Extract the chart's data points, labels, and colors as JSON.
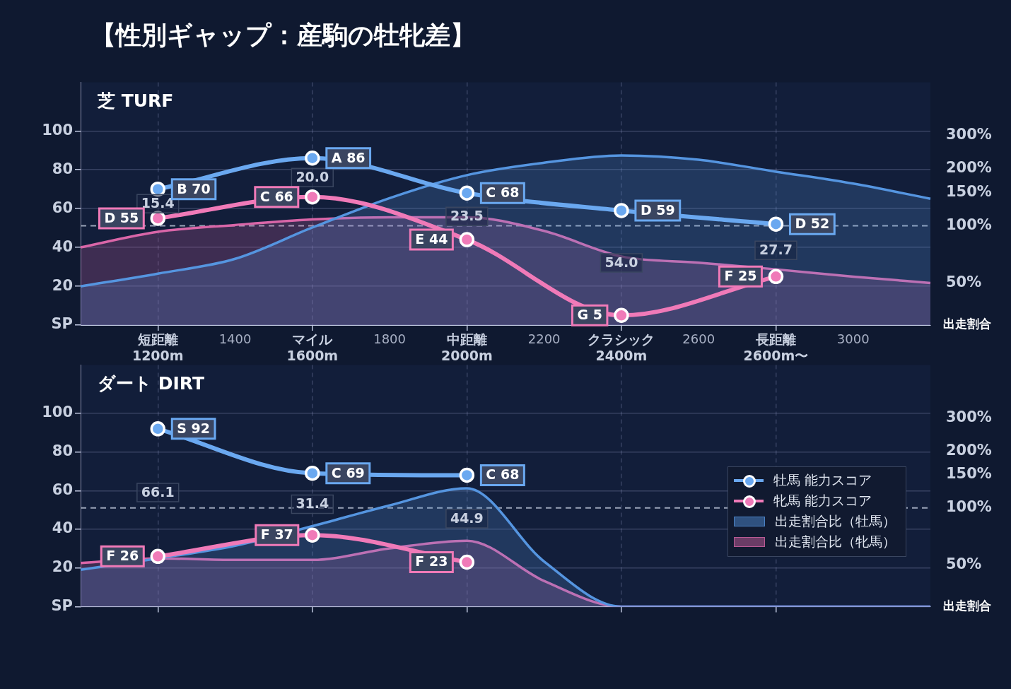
{
  "chart_data": [
    {
      "type": "line",
      "title": "【性別ギャップ：産駒の牡牝差】",
      "subtitle": "芝 TURF",
      "y2label": "出走割合",
      "categories": [
        null,
        "短距離\n1200m",
        "1400",
        "マイル\n1600m",
        "1800",
        "中距離\n2000m",
        "2200",
        "クラシック\n2400m",
        "2600",
        "長距離\n2600m〜",
        "3000",
        null
      ],
      "ylim": [
        0,
        125
      ],
      "yticks": [
        {
          "value": 0,
          "label": "SP"
        },
        20,
        40,
        60,
        80,
        100
      ],
      "y2lim": [
        30,
        570
      ],
      "y2ticks": [
        {
          "value": 50,
          "label": "50%"
        },
        {
          "value": 100,
          "label": "100%"
        },
        {
          "value": 150,
          "label": "150%"
        },
        {
          "value": 200,
          "label": "200%"
        },
        {
          "value": 300,
          "label": "300%"
        }
      ],
      "log": "y2",
      "grid": true,
      "legend": false,
      "marker": "circle",
      "ref_lines": [
        {
          "axis": "y2",
          "value": 100,
          "line_style": "dashed",
          "color": "#9aa4b8"
        }
      ],
      "annotations": [
        "15.4",
        "20.0",
        "23.5",
        "54.0",
        "27.7"
      ],
      "series": [
        {
          "type": "area",
          "axis": "y2",
          "marker": "none",
          "color": "#5595e0",
          "values": [
            48,
            56,
            67,
            98,
            140,
            185,
            215,
            235,
            223,
            193,
            167,
            139
          ]
        },
        {
          "type": "area",
          "axis": "y2",
          "marker": "none",
          "color": "#d966a8",
          "values": [
            77,
            93,
            101,
            108,
            111,
            111,
            94,
            69,
            64,
            59,
            54,
            50
          ]
        },
        {
          "type": "line",
          "color": "#6aa8f0",
          "values": [
            null,
            70,
            null,
            86,
            null,
            68,
            null,
            59,
            null,
            52,
            null,
            null
          ],
          "value_labels": [
            null,
            "B 70",
            null,
            "A 86",
            null,
            "C 68",
            null,
            "D 59",
            null,
            "D 52",
            null,
            null
          ]
        },
        {
          "type": "line",
          "color": "#f07ab8",
          "values": [
            null,
            55,
            null,
            66,
            null,
            44,
            null,
            5,
            null,
            25,
            null,
            null
          ],
          "value_labels": [
            null,
            "D 55",
            null,
            "C 66",
            null,
            "E 44",
            null,
            "G 5",
            null,
            "F 25",
            null,
            null
          ]
        }
      ]
    },
    {
      "type": "line",
      "subtitle": "ダート DIRT",
      "y2label": "出走割合",
      "categories": [
        null,
        null,
        null,
        null,
        null,
        null,
        null,
        null,
        null,
        null,
        null,
        null
      ],
      "ylim": [
        0,
        125
      ],
      "yticks": [
        {
          "value": 0,
          "label": "SP"
        },
        20,
        40,
        60,
        80,
        100
      ],
      "y2lim": [
        30,
        570
      ],
      "y2ticks": [
        {
          "value": 50,
          "label": "50%"
        },
        {
          "value": 100,
          "label": "100%"
        },
        {
          "value": 150,
          "label": "150%"
        },
        {
          "value": 200,
          "label": "200%"
        },
        {
          "value": 300,
          "label": "300%"
        }
      ],
      "log": "y2",
      "grid": true,
      "legend": "right",
      "marker": "circle",
      "ref_lines": [
        {
          "axis": "y2",
          "value": 100,
          "line_style": "dashed",
          "color": "#9aa4b8"
        }
      ],
      "annotations": [
        "66.1",
        "31.4",
        "44.9"
      ],
      "series": [
        {
          "type": "area",
          "axis": "y2",
          "marker": "none",
          "name": "出走割合比（牡馬）",
          "color": "#5595e0",
          "values": [
            47,
            54,
            63,
            80,
            103,
            127,
            52,
            30,
            30,
            30,
            30,
            30
          ]
        },
        {
          "type": "area",
          "axis": "y2",
          "marker": "none",
          "name": "出走割合比（牝馬）",
          "color": "#d966a8",
          "values": [
            51,
            54,
            53,
            53,
            61,
            67,
            41,
            30,
            30,
            30,
            30,
            30
          ]
        },
        {
          "type": "line",
          "name": "牡馬 能力スコア",
          "color": "#6aa8f0",
          "values": [
            null,
            92,
            null,
            69,
            null,
            68,
            null,
            null,
            null,
            null,
            null,
            null
          ],
          "value_labels": [
            null,
            "S 92",
            null,
            "C 69",
            null,
            "C 68",
            null,
            null,
            null,
            null,
            null,
            null
          ]
        },
        {
          "type": "line",
          "name": "牝馬 能力スコア",
          "color": "#f07ab8",
          "values": [
            null,
            26,
            null,
            37,
            null,
            23,
            null,
            null,
            null,
            null,
            null,
            null
          ],
          "value_labels": [
            null,
            "F 26",
            null,
            "F 37",
            null,
            "F 23",
            null,
            null,
            null,
            null,
            null,
            null
          ]
        }
      ]
    }
  ]
}
